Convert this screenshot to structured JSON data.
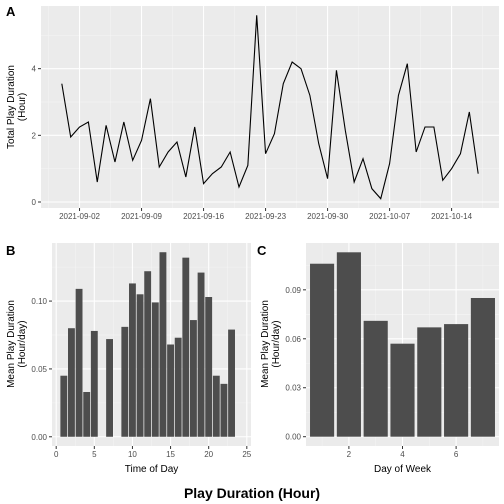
{
  "caption": "Play Duration (Hour)",
  "chart_data": [
    {
      "tag": "A",
      "type": "line",
      "xlabel": "",
      "ylabel": [
        "Total Play Duration",
        "(Hour)"
      ],
      "x": [
        "2021-08-31",
        "2021-09-01",
        "2021-09-02",
        "2021-09-03",
        "2021-09-04",
        "2021-09-05",
        "2021-09-06",
        "2021-09-07",
        "2021-09-08",
        "2021-09-09",
        "2021-09-10",
        "2021-09-11",
        "2021-09-12",
        "2021-09-13",
        "2021-09-14",
        "2021-09-15",
        "2021-09-16",
        "2021-09-17",
        "2021-09-18",
        "2021-09-19",
        "2021-09-20",
        "2021-09-21",
        "2021-09-22",
        "2021-09-23",
        "2021-09-24",
        "2021-09-25",
        "2021-09-26",
        "2021-09-27",
        "2021-09-28",
        "2021-09-29",
        "2021-09-30",
        "2021-10-01",
        "2021-10-02",
        "2021-10-03",
        "2021-10-04",
        "2021-10-05",
        "2021-10-06",
        "2021-10-07",
        "2021-10-08",
        "2021-10-09",
        "2021-10-10",
        "2021-10-11",
        "2021-10-12",
        "2021-10-13",
        "2021-10-14",
        "2021-10-15",
        "2021-10-16",
        "2021-10-17"
      ],
      "values": [
        3.55,
        1.95,
        2.25,
        2.4,
        0.6,
        2.3,
        1.2,
        2.4,
        1.25,
        1.85,
        3.1,
        1.05,
        1.5,
        1.8,
        0.75,
        2.25,
        0.55,
        0.85,
        1.05,
        1.5,
        0.45,
        1.1,
        5.6,
        1.45,
        2.05,
        3.55,
        4.2,
        4.0,
        3.2,
        1.75,
        0.7,
        3.95,
        2.15,
        0.6,
        1.3,
        0.4,
        0.1,
        1.15,
        3.2,
        4.15,
        1.5,
        2.25,
        2.25,
        0.65,
        1.0,
        1.45,
        2.7,
        0.85
      ],
      "xticks": [
        "2021-09-02",
        "2021-09-09",
        "2021-09-16",
        "2021-09-23",
        "2021-09-30",
        "2021-10-07",
        "2021-10-14"
      ],
      "yticks": [
        0,
        2,
        4
      ],
      "ylim": [
        -0.18,
        5.88
      ]
    },
    {
      "tag": "B",
      "type": "bar",
      "xlabel": "Time of Day",
      "ylabel": [
        "Mean Play Duration",
        "(Hour/day)"
      ],
      "categories": [
        1,
        2,
        3,
        4,
        5,
        7,
        9,
        10,
        11,
        12,
        13,
        14,
        15,
        16,
        17,
        18,
        19,
        20,
        21,
        22,
        23
      ],
      "values": [
        0.045,
        0.08,
        0.109,
        0.033,
        0.078,
        0.072,
        0.081,
        0.113,
        0.105,
        0.122,
        0.099,
        0.136,
        0.068,
        0.073,
        0.132,
        0.086,
        0.121,
        0.103,
        0.045,
        0.039,
        0.079
      ],
      "xticks": [
        0,
        5,
        10,
        15,
        20,
        25
      ],
      "yticks": [
        0.0,
        0.05,
        0.1
      ],
      "ytick_labels": [
        "0.00",
        "0.05",
        "0.10"
      ],
      "xlim": [
        -0.55,
        25.55
      ],
      "ylim": [
        -0.0068,
        0.1428
      ]
    },
    {
      "tag": "C",
      "type": "bar",
      "xlabel": "Day of Week",
      "ylabel": [
        "Mean Play Duration",
        "(Hour/day)"
      ],
      "categories": [
        1,
        2,
        3,
        4,
        5,
        6,
        7
      ],
      "values": [
        0.106,
        0.113,
        0.071,
        0.057,
        0.067,
        0.069,
        0.085
      ],
      "xticks": [
        2,
        4,
        6
      ],
      "yticks": [
        0.0,
        0.03,
        0.06,
        0.09
      ],
      "ytick_labels": [
        "0.00",
        "0.03",
        "0.06",
        "0.09"
      ],
      "xlim": [
        0.4,
        7.6
      ],
      "ylim": [
        -0.0057,
        0.1187
      ]
    }
  ]
}
